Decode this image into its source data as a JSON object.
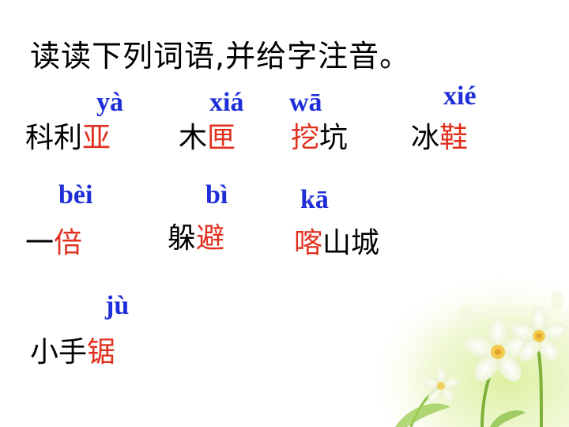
{
  "title": "读读下列词语,并给字注音。",
  "items": [
    {
      "pinyin": "yà",
      "plain": "科利",
      "target": "亚",
      "after": ""
    },
    {
      "pinyin": "xiá",
      "plain": "木",
      "target": "匣",
      "after": ""
    },
    {
      "pinyin": "wā",
      "plain": "",
      "target": "挖",
      "after": "坑"
    },
    {
      "pinyin": "xié",
      "plain": "冰",
      "target": "鞋",
      "after": ""
    },
    {
      "pinyin": "bèi",
      "plain": "一",
      "target": "倍",
      "after": ""
    },
    {
      "pinyin": "bì",
      "plain": "躲",
      "target": "避",
      "after": ""
    },
    {
      "pinyin": "kā",
      "plain": "",
      "target": "喀",
      "after": "山城"
    },
    {
      "pinyin": "jù",
      "plain": "小手",
      "target": "锯",
      "after": ""
    }
  ],
  "colors": {
    "pinyin": "#1f2fd8",
    "target": "#e0301e",
    "text": "#000000"
  }
}
